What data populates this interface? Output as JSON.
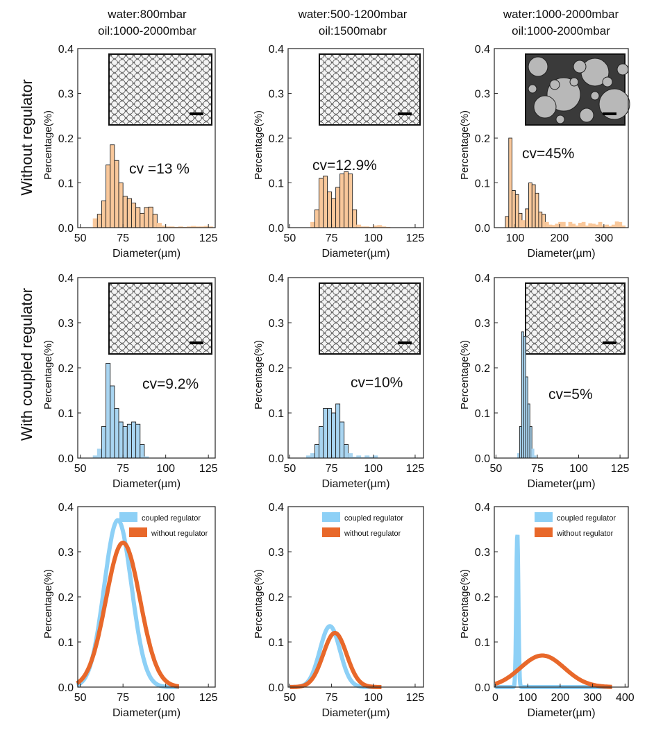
{
  "column_titles": [
    [
      "water:800mbar",
      "oil:1000-2000mbar"
    ],
    [
      "water:500-1200mbar",
      "oil:1500mabr"
    ],
    [
      "water:1000-2000mbar",
      "oil:1000-2000mbar"
    ]
  ],
  "row_labels": [
    "Without regulator",
    "With coupled regulator"
  ],
  "colors": {
    "orange_bar": "#f9c89b",
    "blue_bar": "#a9d5f1",
    "blue_curve": "#8dd0f6",
    "orange_curve": "#e8682a"
  },
  "chart_data": [
    {
      "type": "bar",
      "row": 0,
      "col": 0,
      "xlabel": "Diameter(µm)",
      "ylabel": "Percentage(%)",
      "xlim": [
        48.5,
        129
      ],
      "ylim": [
        0,
        0.4
      ],
      "xticks": [
        50,
        75,
        100,
        125
      ],
      "yticks": [
        "0.0",
        "0.1",
        "0.2",
        "0.3",
        "0.4"
      ],
      "annotation": "cv =13 %",
      "color": "orange",
      "inset": "uniform",
      "bin_start": 57.5,
      "bin_width": 2.5,
      "values": [
        0.02,
        0.03,
        0.06,
        0.14,
        0.185,
        0.15,
        0.1,
        0.07,
        0.065,
        0.055,
        0.045,
        0.032,
        0.045,
        0.046,
        0.03,
        0.01,
        0.004,
        0.002,
        0.002,
        0.001,
        0.002,
        0.001,
        0.002,
        0.003,
        0.002,
        0.002,
        0.003,
        0.002
      ]
    },
    {
      "type": "bar",
      "row": 0,
      "col": 1,
      "xlabel": "Diameter(µm)",
      "ylabel": "Percentage(%)",
      "xlim": [
        49,
        130
      ],
      "ylim": [
        0,
        0.4
      ],
      "xticks": [
        50,
        75,
        100,
        125
      ],
      "yticks": [
        "0.0",
        "0.1",
        "0.2",
        "0.3",
        "0.4"
      ],
      "annotation": "cv=12.9%",
      "color": "orange",
      "inset": "uniform",
      "bin_start": 62.5,
      "bin_width": 2.5,
      "values": [
        0.012,
        0.04,
        0.11,
        0.115,
        0.08,
        0.065,
        0.09,
        0.12,
        0.125,
        0.12,
        0.04,
        0.006,
        0.002,
        0.002,
        0.001,
        0.004,
        0.005,
        0.002,
        0.001
      ]
    },
    {
      "type": "bar",
      "row": 0,
      "col": 2,
      "xlabel": "Diameter(µm)",
      "ylabel": "Percentage(%)",
      "xlim": [
        53,
        355
      ],
      "ylim": [
        0,
        0.4
      ],
      "xticks": [
        100,
        200,
        300
      ],
      "yticks": [
        "0.0",
        "0.1",
        "0.2",
        "0.3",
        "0.4"
      ],
      "annotation": "cv=45%",
      "color": "orange",
      "inset": "polydisperse",
      "bin_start": 78,
      "bin_width": 7.5,
      "values": [
        0.025,
        0.2,
        0.083,
        0.074,
        0.032,
        0.016,
        0.042,
        0.1,
        0.096,
        0.077,
        0.035,
        0.03,
        0.012,
        0.006,
        0.005,
        0.008,
        0.012,
        0.012,
        0.002,
        0.012,
        0.008,
        0.004,
        0.01,
        0.012,
        0.004,
        0.009,
        0.008,
        0.006,
        0.012,
        0.004,
        0.006,
        0.003,
        0.006,
        0.013,
        0.012,
        0.004
      ]
    },
    {
      "type": "bar",
      "row": 1,
      "col": 0,
      "xlabel": "Diameter(µm)",
      "ylabel": "Percentage(%)",
      "xlim": [
        48.5,
        129
      ],
      "ylim": [
        0,
        0.4
      ],
      "xticks": [
        50,
        75,
        100,
        125
      ],
      "yticks": [
        "0.0",
        "0.1",
        "0.2",
        "0.3",
        "0.4"
      ],
      "annotation": "cv=9.2%",
      "color": "blue",
      "inset": "uniform",
      "bin_start": 57.5,
      "bin_width": 2.5,
      "values": [
        0.005,
        0.02,
        0.07,
        0.21,
        0.16,
        0.11,
        0.08,
        0.07,
        0.075,
        0.08,
        0.075,
        0.03,
        0.003
      ]
    },
    {
      "type": "bar",
      "row": 1,
      "col": 1,
      "xlabel": "Diameter(µm)",
      "ylabel": "Percentage(%)",
      "xlim": [
        49,
        130
      ],
      "ylim": [
        0,
        0.4
      ],
      "xticks": [
        50,
        75,
        100,
        125
      ],
      "yticks": [
        "0.0",
        "0.1",
        "0.2",
        "0.3",
        "0.4"
      ],
      "annotation": "cv=10%",
      "color": "blue",
      "inset": "uniform",
      "bin_start": 60,
      "bin_width": 2.5,
      "values": [
        0.005,
        0.01,
        0.03,
        0.07,
        0.11,
        0.11,
        0.1,
        0.12,
        0.08,
        0.03,
        0.01,
        0.002,
        0.005,
        0.001,
        0.005,
        0.002,
        0.005
      ]
    },
    {
      "type": "bar",
      "row": 1,
      "col": 2,
      "xlabel": "Diameter(µm)",
      "ylabel": "Percentage(%)",
      "xlim": [
        49,
        130
      ],
      "ylim": [
        0,
        0.4
      ],
      "xticks": [
        50,
        75,
        100,
        125
      ],
      "yticks": [
        "0.0",
        "0.1",
        "0.2",
        "0.3",
        "0.4"
      ],
      "annotation": "cv=5%",
      "color": "blue",
      "inset": "uniform",
      "bin_start": 63,
      "bin_width": 1.25,
      "values": [
        0.01,
        0.07,
        0.28,
        0.27,
        0.18,
        0.12,
        0.07,
        0.02,
        0.005
      ]
    },
    {
      "type": "line",
      "row": 2,
      "col": 0,
      "xlabel": "Diameter(µm)",
      "ylabel": "Percentage(%)",
      "xlim": [
        48.5,
        129
      ],
      "ylim": [
        0,
        0.4
      ],
      "xticks": [
        50,
        75,
        100,
        125
      ],
      "yticks": [
        "0.0",
        "0.1",
        "0.2",
        "0.3",
        "0.4"
      ],
      "legend": [
        "coupled regulator",
        "without regulator"
      ],
      "series": [
        {
          "name": "coupled regulator",
          "color": "blue",
          "mean": 72,
          "peak": 0.37,
          "sd": 8
        },
        {
          "name": "without regulator",
          "color": "orange",
          "mean": 75,
          "peak": 0.32,
          "sd": 10
        }
      ],
      "fit_range": [
        48,
        108
      ]
    },
    {
      "type": "line",
      "row": 2,
      "col": 1,
      "xlabel": "Diameter(µm)",
      "ylabel": "Percentage(%)",
      "xlim": [
        49,
        130
      ],
      "ylim": [
        0,
        0.4
      ],
      "xticks": [
        50,
        75,
        100,
        125
      ],
      "yticks": [
        "0.0",
        "0.1",
        "0.2",
        "0.3",
        "0.4"
      ],
      "legend": [
        "coupled regulator",
        "without regulator"
      ],
      "series": [
        {
          "name": "coupled regulator",
          "color": "blue",
          "mean": 74,
          "peak": 0.135,
          "sd": 6
        },
        {
          "name": "without regulator",
          "color": "orange",
          "mean": 77,
          "peak": 0.12,
          "sd": 7
        }
      ],
      "fit_range": [
        50,
        105
      ]
    },
    {
      "type": "line",
      "row": 2,
      "col": 2,
      "xlabel": "Diameter(µm)",
      "ylabel": "Percentage(%)",
      "xlim": [
        -3,
        410
      ],
      "ylim": [
        0,
        0.4
      ],
      "xticks": [
        0,
        100,
        200,
        300,
        400
      ],
      "yticks": [
        "0.0",
        "0.1",
        "0.2",
        "0.3",
        "0.4"
      ],
      "legend": [
        "coupled regulator",
        "without regulator"
      ],
      "series": [
        {
          "name": "coupled regulator",
          "color": "blue",
          "mean": 68,
          "peak": 0.34,
          "sd": 3.2
        },
        {
          "name": "without regulator",
          "color": "orange",
          "mean": 145,
          "peak": 0.07,
          "sd": 68
        }
      ],
      "fit_range": [
        0,
        360
      ]
    }
  ]
}
